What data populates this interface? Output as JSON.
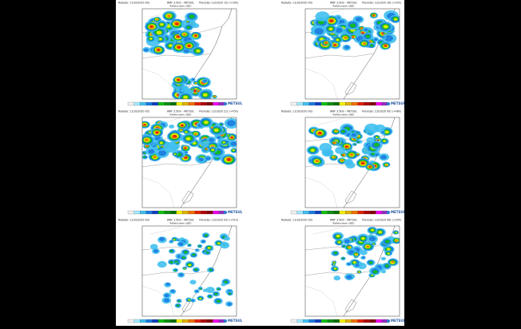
{
  "panels": [
    {
      "run": "Rodada: 11/10/2020 00z",
      "model": "WRF 3.5km - METSUL",
      "forecast": "Previsão: 12/10/20 15z (+39h)",
      "subtitle": "Refletividade (dBZ)"
    },
    {
      "run": "Rodada: 11/10/2020 00z",
      "model": "WRF 3.5km - METSUL",
      "forecast": "Previsão: 12/10/20 18z (+42h)",
      "subtitle": "Refletividade (dBZ)"
    },
    {
      "run": "Rodada: 11/10/2020 00z",
      "model": "WRF 3.5km - METSUL",
      "forecast": "Previsão: 12/10/20 21z (+45h)",
      "subtitle": "Refletividade (dBZ)"
    },
    {
      "run": "Rodada: 11/10/2020 00z",
      "model": "WRF 3.5km - METSUL",
      "forecast": "Previsão: 13/10/20 00z (+48h)",
      "subtitle": "Refletividade (dBZ)"
    },
    {
      "run": "Rodada: 11/10/2020 00z",
      "model": "WRF 3.5km - METSUL",
      "forecast": "Previsão: 13/10/20 03z (+51h)",
      "subtitle": "Refletividade (dBZ)"
    },
    {
      "run": "Rodada: 11/10/2020 00z",
      "model": "WRF 3.5km - METSUL",
      "forecast": "Previsão: 13/10/20 06z (+54h)",
      "subtitle": "Refletividade (dBZ)"
    }
  ],
  "logo": "METSUL"
}
